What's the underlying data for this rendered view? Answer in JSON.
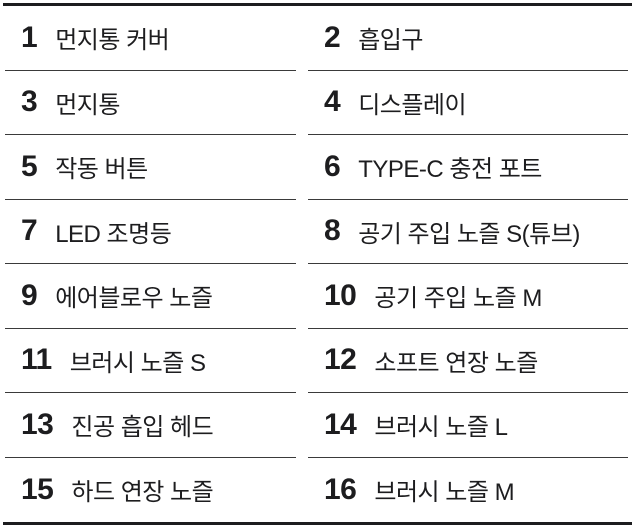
{
  "page": {
    "background_color": "#ffffff",
    "text_color": "#1d1d1f",
    "thick_rule_color": "#1d1d1f",
    "thin_rule_color": "#3a3a3a"
  },
  "parts": {
    "items": [
      {
        "number": "1",
        "label": "먼지통 커버"
      },
      {
        "number": "2",
        "label": "흡입구"
      },
      {
        "number": "3",
        "label": "먼지통"
      },
      {
        "number": "4",
        "label": "디스플레이"
      },
      {
        "number": "5",
        "label": "작동 버튼"
      },
      {
        "number": "6",
        "label": "TYPE-C 충전 포트"
      },
      {
        "number": "7",
        "label": "LED 조명등"
      },
      {
        "number": "8",
        "label": "공기 주입 노즐 S(튜브)"
      },
      {
        "number": "9",
        "label": "에어블로우 노즐"
      },
      {
        "number": "10",
        "label": "공기 주입 노즐 M"
      },
      {
        "number": "11",
        "label": "브러시 노즐 S"
      },
      {
        "number": "12",
        "label": "소프트 연장 노즐"
      },
      {
        "number": "13",
        "label": "진공 흡입 헤드"
      },
      {
        "number": "14",
        "label": "브러시 노즐 L"
      },
      {
        "number": "15",
        "label": "하드 연장 노즐"
      },
      {
        "number": "16",
        "label": "브러시 노즐 M"
      }
    ]
  }
}
